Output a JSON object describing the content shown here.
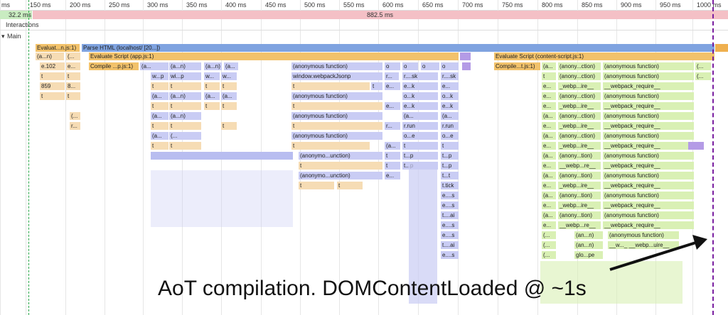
{
  "ruler": {
    "ticks": [
      {
        "label": "ms"
      },
      {
        "label": "150 ms"
      },
      {
        "label": "200 ms"
      },
      {
        "label": "250 ms"
      },
      {
        "label": "300 ms"
      },
      {
        "label": "350 ms"
      },
      {
        "label": "400 ms"
      },
      {
        "label": "450 ms"
      },
      {
        "label": "500 ms"
      },
      {
        "label": "550 ms"
      },
      {
        "label": "600 ms"
      },
      {
        "label": "650 ms"
      },
      {
        "label": "700 ms"
      },
      {
        "label": "750 ms"
      },
      {
        "label": "800 ms"
      },
      {
        "label": "850 ms"
      },
      {
        "label": "900 ms"
      },
      {
        "label": "950 ms"
      },
      {
        "label": "1000 ms"
      }
    ]
  },
  "frames": {
    "first": "32.2 ms",
    "second": "882.5 ms"
  },
  "tracks": {
    "interactions": "Interactions",
    "main": "Main",
    "main_toggle": "▾"
  },
  "flame": {
    "evaluate_n": "Evaluat...n.js:1)",
    "parse_html": "Parse HTML (localhost/ [20...])",
    "an": "(a...n)",
    "paren": "(...",
    "evaluate_app": "Evaluate Script (app.js:1)",
    "evaluate_cs": "Evaluate Script (content-script.js:1)",
    "e102": "e.102",
    "e_dots": "e...",
    "compile_p": "Compile ...p.js:1)",
    "a_dots": "(a...",
    "anon_fn": "(anonymous function)",
    "compile_t": "Compile...t.js:1)",
    "anon_ction": "(anony...ction)",
    "t": "t",
    "w_p": "w...p",
    "wi_p": "wi...p",
    "w_dots": "w...",
    "window_wp": "window.webpackJsonp",
    "r_dots": "r...",
    "r_sk": "r....sk",
    "v859": "859",
    "v8": "8...",
    "webp_ire": "_webp...ire__",
    "wp_require": "__webpack_require__",
    "e_k": "e...k",
    "o_k": "o...k",
    "rrun": "r.run",
    "o_e": "o...e",
    "t_p": "t...p",
    "anon_unction": "(anonymo...unction)",
    "anony_tion": "(anony...tion)",
    "webp_re": "__webp...re__",
    "e_dots2": "e...",
    "t_t": "t...t",
    "ttick": "t.tick",
    "e_s": "e....s",
    "t_ai": "t....ai",
    "an_n": "(an...n)",
    "w_w": "__w..._ __webp...uire__",
    "glo_pe": "glo...pe",
    "o": "o"
  },
  "annotation": "AoT compilation. DOMContentLoaded @ ~1s",
  "colors": {
    "parse": "#7fa3e0",
    "script": "#f2c26b",
    "function": "#f6dcb4",
    "lavender": "#c9ccf4",
    "content": "#d9f0b4",
    "frame": "#f4c0c6",
    "dcl_line": "#7a1fa0"
  }
}
